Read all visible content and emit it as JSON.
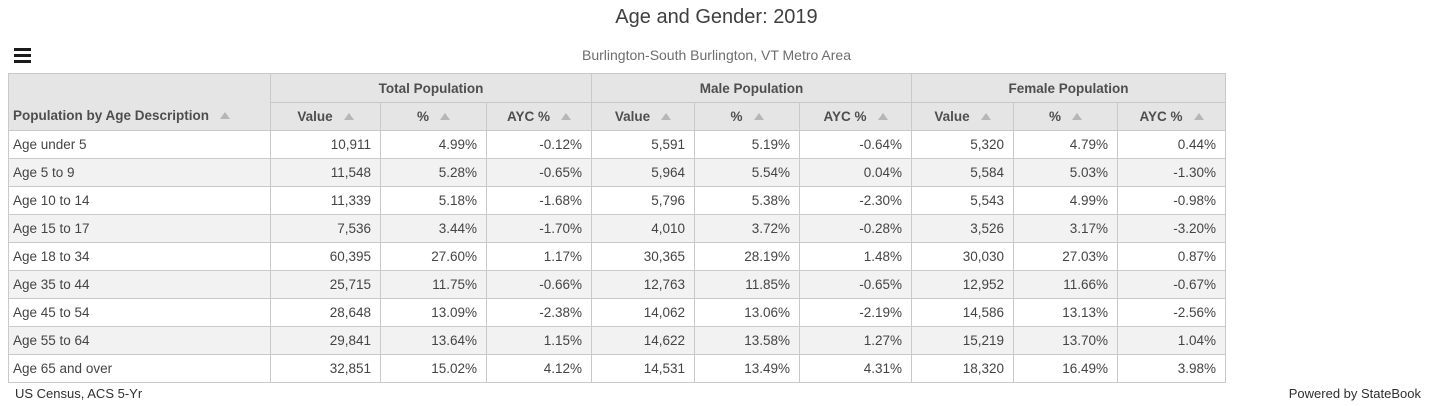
{
  "page": {
    "title": "Age and Gender: 2019",
    "subtitle": "Burlington-South Burlington, VT Metro Area"
  },
  "menu": {
    "icon": "hamburger-menu-icon"
  },
  "table": {
    "row_dimension_header": "Population by Age Description",
    "column_groups": [
      "Total Population",
      "Male Population",
      "Female Population"
    ],
    "sub_columns": [
      "Value",
      "%",
      "AYC %"
    ],
    "sort_icon": "ascending-triangle",
    "rows": [
      {
        "label": "Age under 5",
        "cells": [
          "10,911",
          "4.99%",
          "-0.12%",
          "5,591",
          "5.19%",
          "-0.64%",
          "5,320",
          "4.79%",
          "0.44%"
        ]
      },
      {
        "label": "Age 5 to 9",
        "cells": [
          "11,548",
          "5.28%",
          "-0.65%",
          "5,964",
          "5.54%",
          "0.04%",
          "5,584",
          "5.03%",
          "-1.30%"
        ]
      },
      {
        "label": "Age 10 to 14",
        "cells": [
          "11,339",
          "5.18%",
          "-1.68%",
          "5,796",
          "5.38%",
          "-2.30%",
          "5,543",
          "4.99%",
          "-0.98%"
        ]
      },
      {
        "label": "Age 15 to 17",
        "cells": [
          "7,536",
          "3.44%",
          "-1.70%",
          "4,010",
          "3.72%",
          "-0.28%",
          "3,526",
          "3.17%",
          "-3.20%"
        ]
      },
      {
        "label": "Age 18 to 34",
        "cells": [
          "60,395",
          "27.60%",
          "1.17%",
          "30,365",
          "28.19%",
          "1.48%",
          "30,030",
          "27.03%",
          "0.87%"
        ]
      },
      {
        "label": "Age 35 to 44",
        "cells": [
          "25,715",
          "11.75%",
          "-0.66%",
          "12,763",
          "11.85%",
          "-0.65%",
          "12,952",
          "11.66%",
          "-0.67%"
        ]
      },
      {
        "label": "Age 45 to 54",
        "cells": [
          "28,648",
          "13.09%",
          "-2.38%",
          "14,062",
          "13.06%",
          "-2.19%",
          "14,586",
          "13.13%",
          "-2.56%"
        ]
      },
      {
        "label": "Age 55 to 64",
        "cells": [
          "29,841",
          "13.64%",
          "1.15%",
          "14,622",
          "13.58%",
          "1.27%",
          "15,219",
          "13.70%",
          "1.04%"
        ]
      },
      {
        "label": "Age 65 and over",
        "cells": [
          "32,851",
          "15.02%",
          "4.12%",
          "14,531",
          "13.49%",
          "4.31%",
          "18,320",
          "16.49%",
          "3.98%"
        ]
      }
    ]
  },
  "footer": {
    "source": "US Census, ACS 5-Yr",
    "powered_by": "Powered by StateBook"
  },
  "colors": {
    "header_bg": "#e5e5e5",
    "alt_row_bg": "#f2f2f2",
    "inner_border": "#c9c9c9",
    "outer_border": "#979797",
    "header_text": "#4e4e4e",
    "body_text": "#444444",
    "subtitle_text": "#6e6e6e",
    "sort_icon": "#b6b6b6"
  }
}
